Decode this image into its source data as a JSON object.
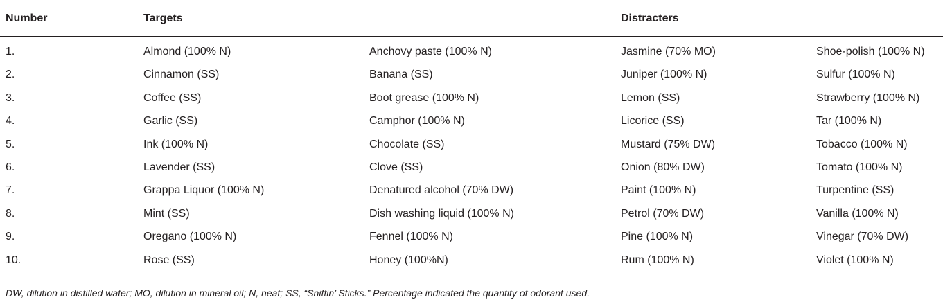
{
  "table": {
    "headers": {
      "number": "Number",
      "targets": "Targets",
      "distracters": "Distracters"
    },
    "rows": [
      {
        "number": "1.",
        "target_a": "Almond (100% N)",
        "target_b": "Anchovy paste (100% N)",
        "distracter_a": "Jasmine (70% MO)",
        "distracter_b": "Shoe-polish (100% N)"
      },
      {
        "number": "2.",
        "target_a": "Cinnamon (SS)",
        "target_b": "Banana (SS)",
        "distracter_a": "Juniper (100% N)",
        "distracter_b": "Sulfur (100% N)"
      },
      {
        "number": "3.",
        "target_a": "Coffee (SS)",
        "target_b": "Boot grease (100% N)",
        "distracter_a": "Lemon (SS)",
        "distracter_b": "Strawberry (100% N)"
      },
      {
        "number": "4.",
        "target_a": "Garlic (SS)",
        "target_b": "Camphor (100% N)",
        "distracter_a": "Licorice (SS)",
        "distracter_b": "Tar (100% N)"
      },
      {
        "number": "5.",
        "target_a": "Ink (100% N)",
        "target_b": "Chocolate (SS)",
        "distracter_a": "Mustard (75% DW)",
        "distracter_b": "Tobacco (100% N)"
      },
      {
        "number": "6.",
        "target_a": "Lavender (SS)",
        "target_b": "Clove (SS)",
        "distracter_a": "Onion (80% DW)",
        "distracter_b": "Tomato (100% N)"
      },
      {
        "number": "7.",
        "target_a": "Grappa Liquor (100% N)",
        "target_b": "Denatured alcohol (70% DW)",
        "distracter_a": "Paint (100% N)",
        "distracter_b": "Turpentine (SS)"
      },
      {
        "number": "8.",
        "target_a": "Mint (SS)",
        "target_b": "Dish washing liquid (100% N)",
        "distracter_a": "Petrol (70% DW)",
        "distracter_b": "Vanilla (100% N)"
      },
      {
        "number": "9.",
        "target_a": "Oregano (100% N)",
        "target_b": "Fennel (100% N)",
        "distracter_a": "Pine (100% N)",
        "distracter_b": "Vinegar (70% DW)"
      },
      {
        "number": "10.",
        "target_a": "Rose (SS)",
        "target_b": "Honey (100%N)",
        "distracter_a": "Rum (100% N)",
        "distracter_b": "Violet (100% N)"
      }
    ]
  },
  "footnote": "DW, dilution in distilled water; MO, dilution in mineral oil; N, neat; SS, “Sniffin’ Sticks.” Percentage indicated the quantity of odorant used."
}
